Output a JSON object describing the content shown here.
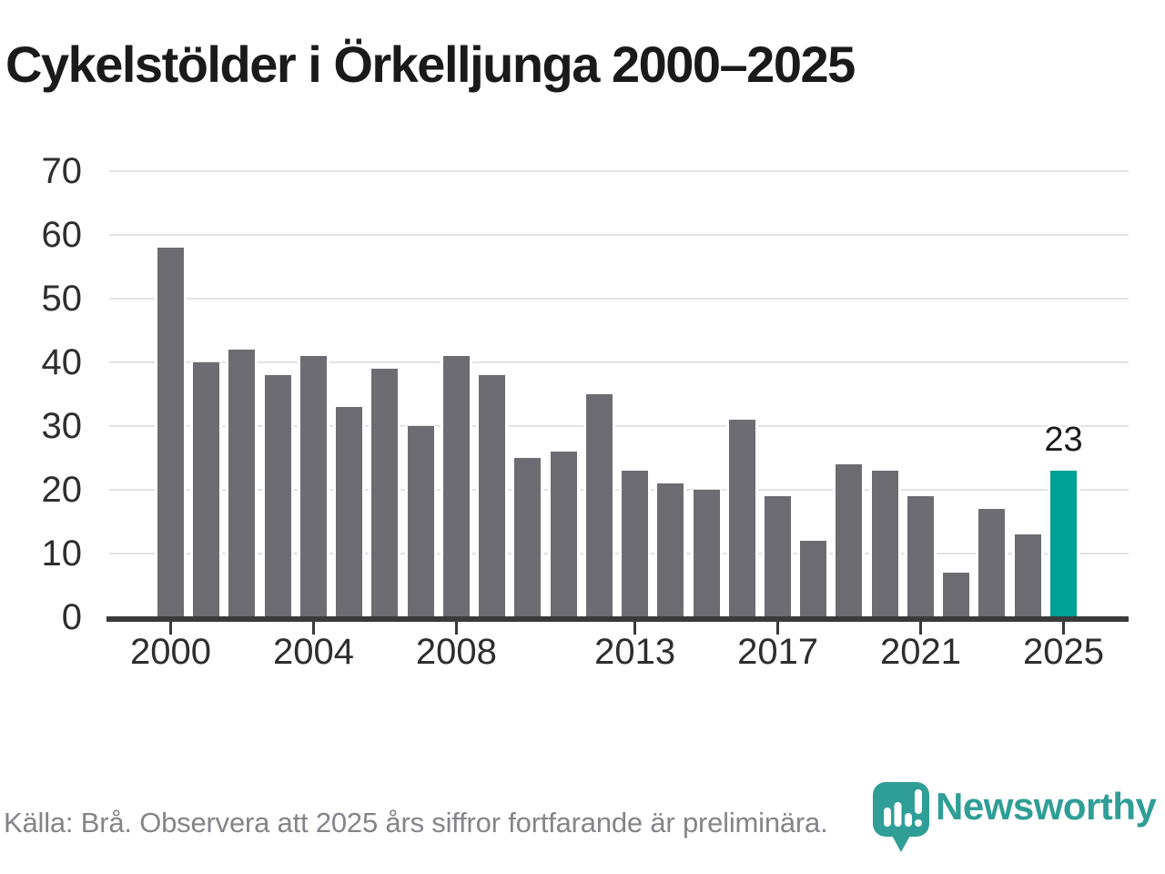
{
  "title": "Cykelstölder i Örkelljunga 2000–2025",
  "footer": {
    "source_note": "Källa: Brå. Observera att 2025 års siffror fortfarande är preliminära."
  },
  "branding": {
    "wordmark": "Newsworthy",
    "icon": "newsworthy-bubble-barchart-icon"
  },
  "colors": {
    "bar_default": "#6c6c72",
    "bar_highlight": "#00a094",
    "axis": "#3a3a3a",
    "gridline": "#e3e3e3",
    "title_text": "#1a1a1a",
    "tick_text": "#2e2e2e",
    "value_label_text": "#1a1a1a",
    "source_text": "#84848b",
    "brand_teal": "#2f9e96"
  },
  "chart_data": {
    "type": "bar",
    "title": "Cykelstölder i Örkelljunga 2000–2025",
    "categories": [
      2000,
      2001,
      2002,
      2003,
      2004,
      2005,
      2006,
      2007,
      2008,
      2009,
      2010,
      2011,
      2012,
      2013,
      2014,
      2015,
      2016,
      2017,
      2018,
      2019,
      2020,
      2021,
      2022,
      2023,
      2024,
      2025
    ],
    "values": [
      58,
      40,
      42,
      38,
      41,
      33,
      39,
      30,
      41,
      38,
      25,
      26,
      35,
      23,
      21,
      20,
      31,
      19,
      12,
      24,
      23,
      19,
      7,
      17,
      13,
      23
    ],
    "highlight": {
      "index": 25,
      "year": 2025,
      "value": 23,
      "label": "23"
    },
    "y_ticks": [
      0,
      10,
      20,
      30,
      40,
      50,
      60,
      70
    ],
    "ylim": [
      0,
      70
    ],
    "x_tick_labels": [
      "2000",
      "2004",
      "2008",
      "2013",
      "2017",
      "2021",
      "2025"
    ],
    "x_tick_years": [
      2000,
      2004,
      2008,
      2013,
      2017,
      2021,
      2025
    ],
    "grid": "horizontal",
    "legend": "none"
  }
}
